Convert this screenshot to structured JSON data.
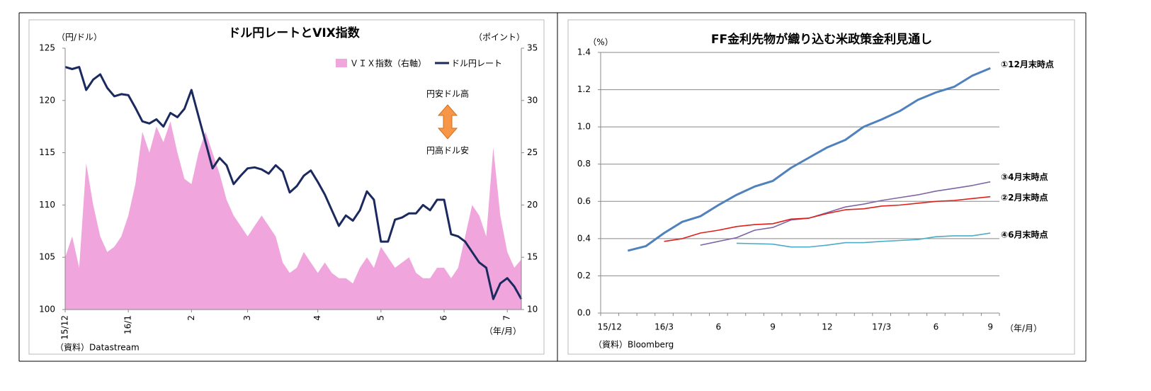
{
  "chart_data": [
    {
      "type": "line",
      "title": "ドル円レートとVIX指数",
      "y_label": "（円/ドル）",
      "y2_label": "（ポイント）",
      "x_label": "（年/月）",
      "categories": [
        "15/12",
        null,
        null,
        null,
        null,
        null,
        null,
        null,
        null,
        "16/1",
        null,
        null,
        null,
        null,
        null,
        null,
        null,
        null,
        "2",
        null,
        null,
        null,
        null,
        null,
        null,
        null,
        "3",
        null,
        null,
        null,
        null,
        null,
        null,
        null,
        null,
        null,
        "4",
        null,
        null,
        null,
        null,
        null,
        null,
        null,
        null,
        "5",
        null,
        null,
        null,
        null,
        null,
        null,
        null,
        null,
        "6",
        null,
        null,
        null,
        null,
        null,
        null,
        null,
        null,
        "7",
        null,
        null
      ],
      "series": [
        {
          "name": "ＶＩＸ指数（右軸）",
          "type": "area",
          "axis": "y2",
          "color": "#f0a6dd",
          "values": [
            15,
            17,
            14,
            24,
            20,
            17,
            15.5,
            16,
            17,
            19,
            22,
            27,
            25,
            27.5,
            26,
            28,
            25,
            22.5,
            22,
            25,
            27,
            25,
            23,
            20.5,
            19,
            18,
            17,
            18,
            19,
            18,
            17,
            14.5,
            13.5,
            14,
            15.5,
            14.5,
            13.5,
            14.5,
            13.5,
            13,
            13,
            12.5,
            14,
            15,
            14,
            16,
            15,
            14,
            14.5,
            15,
            13.5,
            13,
            13,
            14,
            14,
            13,
            14,
            17,
            20,
            19,
            17,
            25.5,
            19,
            15.5,
            14,
            14.8
          ]
        },
        {
          "name": "ドル円レート",
          "type": "line",
          "color": "#1b2a5e",
          "values": [
            123.2,
            123,
            123.2,
            121,
            122,
            122.5,
            121.2,
            120.4,
            120.6,
            120.5,
            119.3,
            118,
            117.8,
            118.2,
            117.5,
            118.8,
            118.4,
            119.2,
            121,
            118.5,
            116,
            113.5,
            114.5,
            113.8,
            112,
            112.8,
            113.5,
            113.6,
            113.4,
            113,
            113.8,
            113.2,
            111.2,
            111.8,
            112.8,
            113.3,
            112.2,
            111,
            109.5,
            108,
            109,
            108.5,
            109.5,
            111.3,
            110.5,
            106.5,
            106.5,
            108.6,
            108.8,
            109.2,
            109.2,
            110,
            109.5,
            110.5,
            110.5,
            107.2,
            107,
            106.5,
            105.5,
            104.5,
            104,
            101,
            102.5,
            103,
            102.2,
            101
          ]
        }
      ],
      "ylim": [
        100,
        125
      ],
      "yticks": [
        100,
        105,
        110,
        115,
        120,
        125
      ],
      "y2lim": [
        10,
        35
      ],
      "y2ticks": [
        10,
        15,
        20,
        25,
        30,
        35
      ],
      "annotations": [
        "円安ドル高",
        "円高ドル安"
      ],
      "source": "（資料）Datastream",
      "grid": false
    },
    {
      "type": "line",
      "title": "FF金利先物が織り込む米政策金利見通し",
      "y_label": "（%）",
      "x_label": "（年/月）",
      "categories": [
        "15/12",
        null,
        null,
        "16/3",
        null,
        null,
        "6",
        null,
        null,
        "9",
        null,
        null,
        "12",
        null,
        null,
        "17/3",
        null,
        null,
        "6",
        null,
        null,
        "9"
      ],
      "series": [
        {
          "name": "①12月末時点",
          "color": "#4f81bd",
          "label_color": "#000000",
          "values": [
            null,
            0.335,
            0.36,
            0.43,
            0.49,
            0.52,
            0.58,
            0.635,
            0.68,
            0.71,
            0.78,
            0.835,
            0.89,
            0.93,
            1.0,
            1.04,
            1.085,
            1.145,
            1.185,
            1.215,
            1.275,
            1.315
          ]
        },
        {
          "name": "③4月末時点",
          "color": "#8064a2",
          "label_color": "#000000",
          "values": [
            null,
            null,
            null,
            null,
            null,
            0.365,
            0.385,
            0.405,
            0.445,
            0.46,
            0.5,
            0.51,
            0.54,
            0.57,
            0.585,
            0.605,
            0.62,
            0.635,
            0.655,
            0.67,
            0.685,
            0.705
          ]
        },
        {
          "name": "②2月末時点",
          "color": "#e0201b",
          "label_color": "#000000",
          "values": [
            null,
            null,
            null,
            0.385,
            0.4,
            0.43,
            0.445,
            0.465,
            0.475,
            0.48,
            0.505,
            0.51,
            0.535,
            0.555,
            0.56,
            0.575,
            0.58,
            0.59,
            0.6,
            0.605,
            0.615,
            0.625
          ]
        },
        {
          "name": "④6月末時点",
          "color": "#4bacc6",
          "label_color": "#ff0000",
          "values": [
            null,
            null,
            null,
            null,
            null,
            null,
            null,
            0.375,
            0.373,
            0.37,
            0.355,
            0.355,
            0.365,
            0.378,
            0.378,
            0.385,
            0.39,
            0.395,
            0.41,
            0.415,
            0.415,
            0.43
          ]
        }
      ],
      "ylim": [
        0,
        1.4
      ],
      "yticks": [
        {
          "value": 0,
          "label": "0.0"
        },
        0.2,
        0.4,
        0.6,
        0.8,
        {
          "value": 1,
          "label": "1.0"
        },
        1.2,
        1.4
      ],
      "source": "（資料）Bloomberg",
      "grid": true
    }
  ]
}
